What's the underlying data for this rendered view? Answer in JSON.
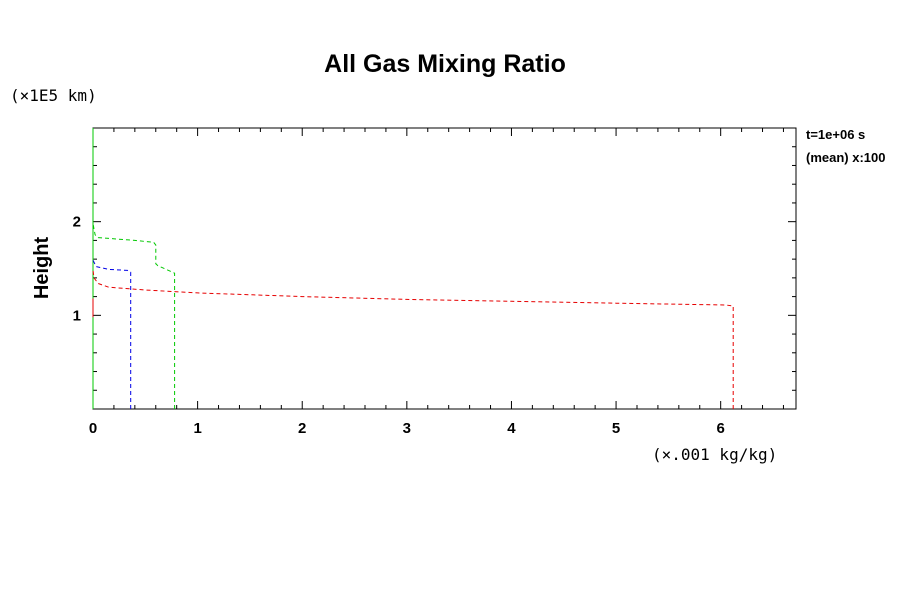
{
  "chart_data": {
    "type": "line",
    "title": "All Gas Mixing Ratio",
    "ylabel": "Height",
    "y_unit": "(×1E5 km)",
    "x_unit": "(×.001 kg/kg)",
    "xlim": [
      0,
      6.72
    ],
    "ylim": [
      0,
      3.0
    ],
    "x_ticks": [
      "0",
      "1",
      "2",
      "3",
      "4",
      "5",
      "6"
    ],
    "y_ticks": [
      "1",
      "2"
    ],
    "annotations": [
      "t=1e+06 s",
      "(mean) x:100"
    ],
    "grid": false,
    "legend": "none",
    "series": [
      {
        "color": "#00c800",
        "dash": "solid",
        "points": [
          [
            0,
            0
          ],
          [
            0,
            3.0
          ]
        ]
      },
      {
        "color": "#00c800",
        "dash": "dashed",
        "points": [
          [
            0.78,
            0
          ],
          [
            0.78,
            1.45
          ],
          [
            0.78,
            1.45
          ],
          [
            0.76,
            1.46
          ],
          [
            0.62,
            1.53
          ],
          [
            0.6,
            1.55
          ],
          [
            0.6,
            1.75
          ],
          [
            0.58,
            1.78
          ],
          [
            0.4,
            1.8
          ],
          [
            0.05,
            1.83
          ],
          [
            0.02,
            1.86
          ],
          [
            0,
            1.98
          ]
        ]
      },
      {
        "color": "#0000e6",
        "dash": "dashed",
        "points": [
          [
            0.36,
            0
          ],
          [
            0.36,
            1.46
          ],
          [
            0.33,
            1.48
          ],
          [
            0.15,
            1.49
          ],
          [
            0.03,
            1.52
          ],
          [
            0,
            1.59
          ]
        ]
      },
      {
        "color": "#e60000",
        "dash": "dashed",
        "points": [
          [
            6.12,
            0
          ],
          [
            6.12,
            1.1
          ],
          [
            6.05,
            1.11
          ],
          [
            5.0,
            1.13
          ],
          [
            4.0,
            1.15
          ],
          [
            3.0,
            1.17
          ],
          [
            2.0,
            1.2
          ],
          [
            1.0,
            1.24
          ],
          [
            0.5,
            1.27
          ],
          [
            0.15,
            1.3
          ],
          [
            0.05,
            1.34
          ],
          [
            0.01,
            1.4
          ],
          [
            0,
            1.48
          ]
        ]
      },
      {
        "color": "#e60000",
        "dash": "solid",
        "points": [
          [
            0,
            0.98
          ],
          [
            0,
            1.18
          ]
        ]
      }
    ]
  }
}
